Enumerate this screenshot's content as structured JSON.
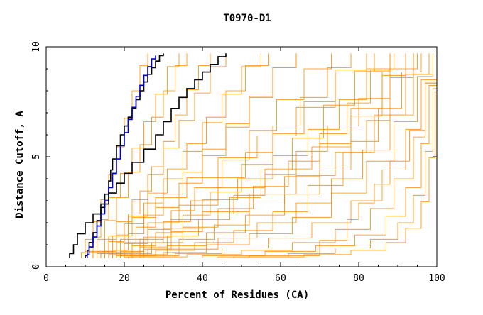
{
  "chart_data": {
    "type": "line",
    "title": "T0970-D1",
    "xlabel": "Percent of Residues (CA)",
    "ylabel": "Distance Cutoff, A",
    "xlim": [
      0,
      100
    ],
    "ylim": [
      0,
      10
    ],
    "x_ticks": [
      0,
      20,
      40,
      60,
      80,
      100
    ],
    "y_ticks": [
      0,
      5,
      10
    ],
    "grid": false,
    "legend": "none",
    "colors": {
      "background_models": "#ff8c00",
      "highlight_black": "#000000",
      "highlight_blue": "#0000cc"
    },
    "highlight_series": [
      {
        "color": "#000000",
        "x": [
          10,
          10.5,
          11,
          12,
          13,
          14,
          15,
          16,
          16.5,
          17,
          18,
          19,
          20,
          21,
          22,
          23,
          24,
          25,
          26,
          27,
          28,
          29,
          30
        ],
        "y": [
          0.4,
          0.6,
          0.9,
          1.3,
          1.8,
          2.4,
          3.0,
          3.6,
          4.2,
          4.6,
          5.2,
          5.8,
          6.2,
          6.6,
          7.0,
          7.4,
          7.8,
          8.2,
          8.6,
          8.9,
          9.2,
          9.5,
          9.7
        ]
      },
      {
        "color": "#0000cc",
        "x": [
          10.5,
          11,
          12,
          13,
          14,
          15,
          16,
          17,
          18,
          19,
          20,
          21,
          22,
          23,
          24,
          25,
          26,
          27,
          28
        ],
        "y": [
          0.4,
          0.7,
          1.1,
          1.6,
          2.1,
          2.7,
          3.3,
          3.9,
          4.6,
          5.2,
          5.8,
          6.4,
          7.0,
          7.5,
          8.0,
          8.5,
          8.9,
          9.3,
          9.6
        ]
      },
      {
        "color": "#000000",
        "x": [
          6,
          7,
          8,
          10,
          12,
          14,
          16,
          18,
          20,
          22,
          25,
          28,
          30,
          32,
          34,
          36,
          38,
          40,
          42,
          44,
          46
        ],
        "y": [
          0.4,
          0.8,
          1.2,
          1.8,
          2.2,
          2.6,
          3.1,
          3.6,
          4.0,
          4.5,
          5.0,
          5.7,
          6.3,
          6.9,
          7.5,
          7.9,
          8.3,
          8.7,
          9.0,
          9.4,
          9.7
        ]
      }
    ],
    "background_series": [
      {
        "x": [
          9,
          10,
          12,
          14,
          16,
          18,
          20,
          22,
          24,
          26
        ],
        "y": [
          0.4,
          0.9,
          1.6,
          2.5,
          3.6,
          4.8,
          6.1,
          7.4,
          8.6,
          9.7
        ]
      },
      {
        "x": [
          11,
          13,
          15,
          18,
          21,
          24,
          27,
          30,
          33,
          36
        ],
        "y": [
          0.4,
          0.9,
          1.6,
          2.6,
          3.7,
          4.9,
          6.2,
          7.4,
          8.6,
          9.7
        ]
      },
      {
        "x": [
          12,
          15,
          18,
          22,
          26,
          30,
          34,
          38,
          42,
          46
        ],
        "y": [
          0.4,
          0.9,
          1.6,
          2.5,
          3.6,
          4.8,
          6.0,
          7.3,
          8.5,
          9.7
        ]
      },
      {
        "x": [
          13,
          16,
          20,
          25,
          30,
          35,
          40,
          45,
          50,
          55
        ],
        "y": [
          0.4,
          0.8,
          1.5,
          2.4,
          3.4,
          4.6,
          5.9,
          7.2,
          8.5,
          9.7
        ]
      },
      {
        "x": [
          14,
          18,
          23,
          28,
          34,
          40,
          46,
          52,
          58,
          64
        ],
        "y": [
          0.4,
          0.8,
          1.4,
          2.2,
          3.2,
          4.4,
          5.7,
          7.0,
          8.4,
          9.7
        ]
      },
      {
        "x": [
          15,
          20,
          26,
          32,
          38,
          45,
          52,
          59,
          66,
          73
        ],
        "y": [
          0.4,
          0.8,
          1.3,
          2.1,
          3.0,
          4.2,
          5.5,
          6.9,
          8.3,
          9.7
        ]
      },
      {
        "x": [
          16,
          22,
          28,
          35,
          42,
          50,
          58,
          66,
          74,
          82
        ],
        "y": [
          0.4,
          0.7,
          1.2,
          1.9,
          2.8,
          4.0,
          5.3,
          6.8,
          8.2,
          9.7
        ]
      },
      {
        "x": [
          17,
          24,
          31,
          39,
          47,
          55,
          63,
          71,
          79,
          88
        ],
        "y": [
          0.4,
          0.7,
          1.1,
          1.7,
          2.6,
          3.7,
          5.1,
          6.6,
          8.1,
          9.7
        ]
      },
      {
        "x": [
          18,
          26,
          34,
          43,
          52,
          61,
          70,
          78,
          86,
          94
        ],
        "y": [
          0.4,
          0.6,
          1.0,
          1.5,
          2.3,
          3.4,
          4.8,
          6.4,
          8.0,
          9.7
        ]
      },
      {
        "x": [
          19,
          28,
          38,
          48,
          58,
          67,
          76,
          84,
          92,
          98
        ],
        "y": [
          0.4,
          0.6,
          0.9,
          1.3,
          2.0,
          3.0,
          4.4,
          6.0,
          7.8,
          9.7
        ]
      },
      {
        "x": [
          20,
          30,
          41,
          52,
          63,
          73,
          82,
          89,
          95,
          99
        ],
        "y": [
          0.4,
          0.5,
          0.8,
          1.2,
          1.8,
          2.7,
          4.0,
          5.6,
          7.6,
          9.7
        ]
      },
      {
        "x": [
          21,
          33,
          45,
          57,
          68,
          78,
          86,
          92,
          96,
          100
        ],
        "y": [
          0.4,
          0.5,
          0.7,
          1.0,
          1.6,
          2.4,
          3.6,
          5.2,
          7.3,
          9.7
        ]
      },
      {
        "x": [
          22,
          36,
          50,
          63,
          74,
          83,
          89,
          94,
          97,
          100
        ],
        "y": [
          0.4,
          0.5,
          0.6,
          0.9,
          1.3,
          2.1,
          3.2,
          4.8,
          7.0,
          9.7
        ]
      },
      {
        "x": [
          23,
          40,
          56,
          69,
          79,
          87,
          92,
          96,
          98,
          100
        ],
        "y": [
          0.4,
          0.4,
          0.6,
          0.8,
          1.1,
          1.8,
          2.8,
          4.4,
          6.8,
          9.7
        ]
      },
      {
        "x": [
          24,
          44,
          62,
          74,
          83,
          90,
          94,
          97,
          99,
          100
        ],
        "y": [
          0.4,
          0.4,
          0.5,
          0.7,
          1.0,
          1.5,
          2.5,
          4.0,
          6.5,
          9.7
        ]
      },
      {
        "x": [
          26,
          48,
          66,
          78,
          87,
          92,
          96,
          98,
          99.5,
          100
        ],
        "y": [
          0.4,
          0.4,
          0.5,
          0.6,
          0.9,
          1.3,
          2.2,
          3.7,
          6.2,
          9.7
        ]
      },
      {
        "x": [
          28,
          52,
          70,
          77,
          80,
          84,
          88,
          93,
          97,
          100
        ],
        "y": [
          0.4,
          0.4,
          0.6,
          1.8,
          2.5,
          3.3,
          4.2,
          5.4,
          7.0,
          9.7
        ]
      },
      {
        "x": [
          12,
          16,
          22,
          28,
          36,
          44,
          54,
          64,
          74,
          84
        ],
        "y": [
          0.4,
          1.0,
          1.8,
          2.7,
          3.6,
          4.5,
          5.4,
          6.5,
          8.0,
          9.7
        ]
      },
      {
        "x": [
          14,
          19,
          26,
          34,
          44,
          56,
          68,
          78,
          86,
          92
        ],
        "y": [
          0.4,
          0.9,
          1.6,
          2.4,
          3.2,
          4.0,
          4.9,
          6.0,
          7.7,
          9.7
        ]
      },
      {
        "x": [
          16,
          22,
          30,
          40,
          52,
          64,
          74,
          82,
          88,
          94
        ],
        "y": [
          0.4,
          0.8,
          1.4,
          2.1,
          2.9,
          3.7,
          4.6,
          5.8,
          7.5,
          9.7
        ]
      },
      {
        "x": [
          15,
          18,
          21,
          24,
          27,
          30,
          33,
          36,
          39,
          42
        ],
        "y": [
          0.4,
          1.0,
          1.9,
          2.9,
          4.0,
          5.1,
          6.3,
          7.5,
          8.6,
          9.7
        ]
      },
      {
        "x": [
          13,
          17,
          21,
          26,
          31,
          36,
          41,
          46,
          51,
          57
        ],
        "y": [
          0.4,
          1.0,
          1.8,
          2.8,
          3.9,
          5.0,
          6.2,
          7.4,
          8.6,
          9.7
        ]
      },
      {
        "x": [
          18,
          24,
          30,
          37,
          44,
          51,
          58,
          65,
          72,
          78
        ],
        "y": [
          0.4,
          0.9,
          1.6,
          2.5,
          3.5,
          4.6,
          5.8,
          7.0,
          8.4,
          9.7
        ]
      },
      {
        "x": [
          20,
          27,
          35,
          44,
          53,
          62,
          70,
          77,
          83,
          89
        ],
        "y": [
          0.4,
          0.8,
          1.4,
          2.2,
          3.1,
          4.2,
          5.4,
          6.7,
          8.2,
          9.7
        ]
      },
      {
        "x": [
          22,
          31,
          41,
          51,
          61,
          70,
          78,
          85,
          91,
          96
        ],
        "y": [
          0.4,
          0.7,
          1.2,
          1.9,
          2.8,
          3.8,
          5.0,
          6.4,
          8.0,
          9.7
        ]
      },
      {
        "x": [
          10,
          12,
          14,
          16,
          19,
          22,
          25,
          28,
          31,
          34
        ],
        "y": [
          0.4,
          1.0,
          1.7,
          2.6,
          3.7,
          4.8,
          6.0,
          7.2,
          8.5,
          9.7
        ]
      },
      {
        "x": [
          17,
          21,
          25,
          30,
          35,
          40,
          46,
          52,
          58,
          64
        ],
        "y": [
          0.4,
          1.1,
          1.9,
          2.8,
          3.8,
          4.8,
          5.9,
          7.1,
          8.4,
          9.7
        ]
      },
      {
        "x": [
          24,
          34,
          44,
          54,
          64,
          73,
          81,
          88,
          94,
          99
        ],
        "y": [
          0.4,
          0.6,
          1.0,
          1.6,
          2.4,
          3.4,
          4.6,
          6.0,
          7.8,
          9.7
        ]
      },
      {
        "x": [
          19,
          25,
          32,
          40,
          49,
          58,
          67,
          75,
          82,
          88
        ],
        "y": [
          0.4,
          1.0,
          1.7,
          2.6,
          3.5,
          4.5,
          5.6,
          6.9,
          8.3,
          9.7
        ]
      },
      {
        "x": [
          25,
          32,
          40,
          48,
          56,
          64,
          72,
          80,
          88,
          95
        ],
        "y": [
          0.4,
          1.2,
          2.0,
          2.8,
          3.7,
          4.7,
          5.8,
          7.0,
          8.3,
          9.7
        ]
      }
    ]
  }
}
